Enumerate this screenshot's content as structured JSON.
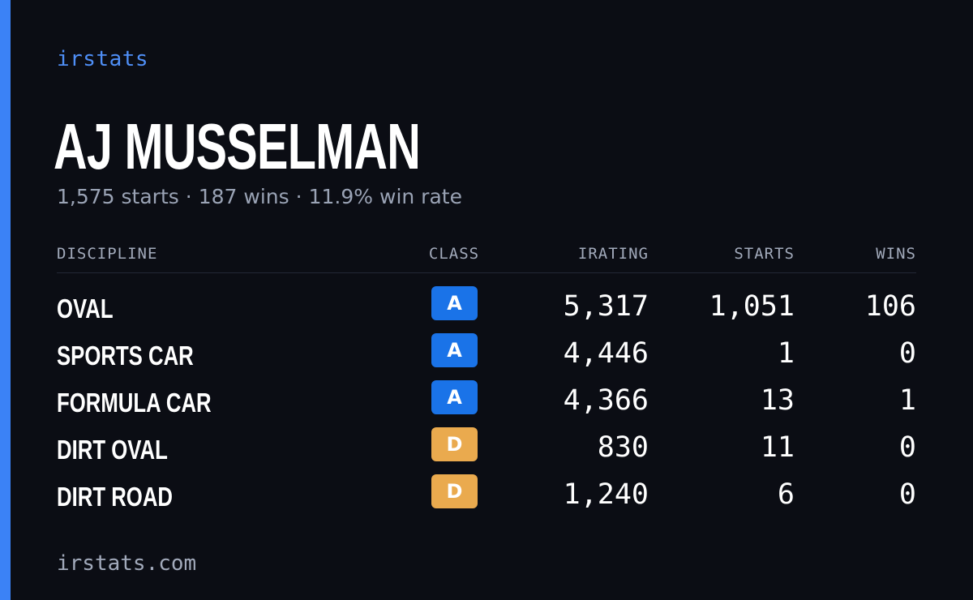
{
  "brand": "irstats",
  "driver": {
    "name": "AJ MUSSELMAN",
    "starts_text": "1,575 starts",
    "wins_text": "187 wins",
    "win_rate_text": "11.9% win rate",
    "separator": "·"
  },
  "table": {
    "headers": {
      "discipline": "DISCIPLINE",
      "class": "CLASS",
      "irating": "IRATING",
      "starts": "STARTS",
      "wins": "WINS"
    },
    "rows": [
      {
        "discipline": "OVAL",
        "class": "A",
        "class_color": "#1a73e8",
        "irating": "5,317",
        "starts": "1,051",
        "wins": "106"
      },
      {
        "discipline": "SPORTS CAR",
        "class": "A",
        "class_color": "#1a73e8",
        "irating": "4,446",
        "starts": "1",
        "wins": "0"
      },
      {
        "discipline": "FORMULA CAR",
        "class": "A",
        "class_color": "#1a73e8",
        "irating": "4,366",
        "starts": "13",
        "wins": "1"
      },
      {
        "discipline": "DIRT OVAL",
        "class": "D",
        "class_color": "#eaaa4e",
        "irating": "830",
        "starts": "11",
        "wins": "0"
      },
      {
        "discipline": "DIRT ROAD",
        "class": "D",
        "class_color": "#eaaa4e",
        "irating": "1,240",
        "starts": "6",
        "wins": "0"
      }
    ]
  },
  "footer": {
    "url": "irstats.com"
  },
  "colors": {
    "background": "#0b0d14",
    "accent": "#3b82f6",
    "brand_text": "#4f8ff7",
    "muted_text": "#9aa3b5"
  }
}
